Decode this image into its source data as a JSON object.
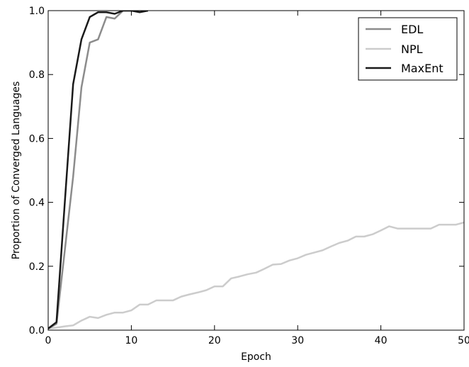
{
  "chart_data": {
    "type": "line",
    "title": "",
    "xlabel": "Epoch",
    "ylabel": "Proportion of Converged Languages",
    "xlim": [
      0,
      50
    ],
    "ylim": [
      0,
      1.0
    ],
    "xticks": [
      0,
      10,
      20,
      30,
      40,
      50
    ],
    "xtick_labels": [
      "0",
      "10",
      "20",
      "30",
      "40",
      "50"
    ],
    "yticks": [
      0.0,
      0.2,
      0.4,
      0.6,
      0.8,
      1.0
    ],
    "ytick_labels": [
      "0.0",
      "0.2",
      "0.4",
      "0.6",
      "0.8",
      "1.0"
    ],
    "grid": false,
    "legend_position": "top-right",
    "series": [
      {
        "name": "EDL",
        "color": "#8c8c8c",
        "points": [
          [
            0,
            0.005
          ],
          [
            1,
            0.02
          ],
          [
            2,
            0.25
          ],
          [
            3,
            0.48
          ],
          [
            4,
            0.76
          ],
          [
            5,
            0.9
          ],
          [
            6,
            0.91
          ],
          [
            7,
            0.98
          ],
          [
            8,
            0.975
          ],
          [
            9,
            1.0
          ],
          [
            10,
            1.0
          ],
          [
            11,
            1.0
          ],
          [
            12,
            1.0
          ]
        ]
      },
      {
        "name": "NPL",
        "color": "#cccccc",
        "points": [
          [
            0,
            0.005
          ],
          [
            1,
            0.008
          ],
          [
            2,
            0.012
          ],
          [
            3,
            0.015
          ],
          [
            4,
            0.03
          ],
          [
            5,
            0.042
          ],
          [
            6,
            0.038
          ],
          [
            7,
            0.048
          ],
          [
            8,
            0.055
          ],
          [
            9,
            0.055
          ],
          [
            10,
            0.062
          ],
          [
            11,
            0.08
          ],
          [
            12,
            0.08
          ],
          [
            13,
            0.093
          ],
          [
            14,
            0.093
          ],
          [
            15,
            0.093
          ],
          [
            16,
            0.105
          ],
          [
            17,
            0.112
          ],
          [
            18,
            0.118
          ],
          [
            19,
            0.125
          ],
          [
            20,
            0.137
          ],
          [
            21,
            0.137
          ],
          [
            22,
            0.162
          ],
          [
            23,
            0.168
          ],
          [
            24,
            0.175
          ],
          [
            25,
            0.18
          ],
          [
            26,
            0.192
          ],
          [
            27,
            0.205
          ],
          [
            28,
            0.207
          ],
          [
            29,
            0.218
          ],
          [
            30,
            0.225
          ],
          [
            31,
            0.236
          ],
          [
            32,
            0.243
          ],
          [
            33,
            0.25
          ],
          [
            34,
            0.262
          ],
          [
            35,
            0.273
          ],
          [
            36,
            0.28
          ],
          [
            37,
            0.293
          ],
          [
            38,
            0.293
          ],
          [
            39,
            0.3
          ],
          [
            40,
            0.312
          ],
          [
            41,
            0.325
          ],
          [
            42,
            0.318
          ],
          [
            43,
            0.318
          ],
          [
            44,
            0.318
          ],
          [
            45,
            0.318
          ],
          [
            46,
            0.318
          ],
          [
            47,
            0.33
          ],
          [
            48,
            0.33
          ],
          [
            49,
            0.33
          ],
          [
            50,
            0.337
          ]
        ]
      },
      {
        "name": "MaxEnt",
        "color": "#1a1a1a",
        "points": [
          [
            0,
            0.005
          ],
          [
            1,
            0.025
          ],
          [
            2,
            0.4
          ],
          [
            3,
            0.77
          ],
          [
            4,
            0.91
          ],
          [
            5,
            0.98
          ],
          [
            6,
            0.995
          ],
          [
            7,
            0.995
          ],
          [
            8,
            0.99
          ],
          [
            9,
            1.0
          ],
          [
            10,
            1.0
          ],
          [
            11,
            0.995
          ],
          [
            12,
            1.0
          ]
        ]
      }
    ]
  }
}
